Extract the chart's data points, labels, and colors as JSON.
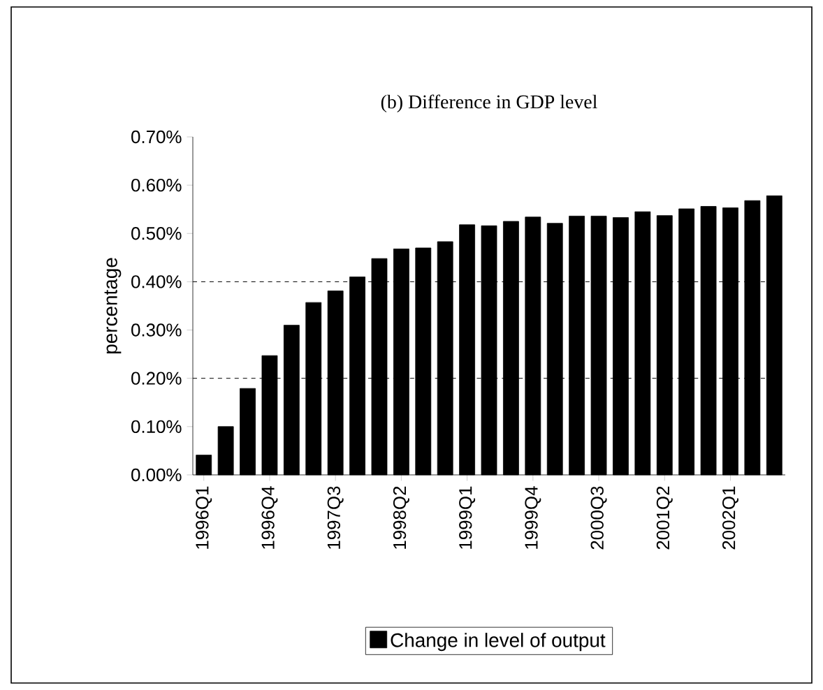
{
  "chart_data": {
    "type": "bar",
    "title": "(b) Difference in GDP level",
    "ylabel": "percentage",
    "categories": [
      "1996Q1",
      null,
      null,
      "1996Q4",
      null,
      null,
      "1997Q3",
      null,
      null,
      "1998Q2",
      null,
      null,
      "1999Q1",
      null,
      null,
      "1999Q4",
      null,
      null,
      "2000Q3",
      null,
      null,
      "2001Q2",
      null,
      null,
      "2002Q1",
      null,
      null
    ],
    "series": [
      {
        "name": "Change in level of output",
        "color": "#000000",
        "values": [
          0.041,
          0.1,
          0.179,
          0.247,
          0.31,
          0.357,
          0.381,
          0.41,
          0.448,
          0.468,
          0.47,
          0.483,
          0.518,
          0.516,
          0.525,
          0.534,
          0.521,
          0.536,
          0.536,
          0.533,
          0.545,
          0.537,
          0.551,
          0.556,
          0.553,
          0.568,
          0.578
        ]
      }
    ],
    "ylim": [
      0,
      0.7
    ],
    "yticks": [
      {
        "value": 0,
        "label": "0.00%"
      },
      {
        "value": 0.1,
        "label": "0.10%"
      },
      {
        "value": 0.2,
        "label": "0.20%"
      },
      {
        "value": 0.3,
        "label": "0.30%"
      },
      {
        "value": 0.4,
        "label": "0.40%"
      },
      {
        "value": 0.5,
        "label": "0.50%"
      },
      {
        "value": 0.6,
        "label": "0.60%"
      },
      {
        "value": 0.7,
        "label": "0.70%"
      }
    ],
    "ref_lines": [
      {
        "axis": "y",
        "value": 0.2,
        "line_style": "dashed"
      },
      {
        "axis": "y",
        "value": 0.4,
        "line_style": "dashed"
      }
    ],
    "legend": "bottom"
  }
}
